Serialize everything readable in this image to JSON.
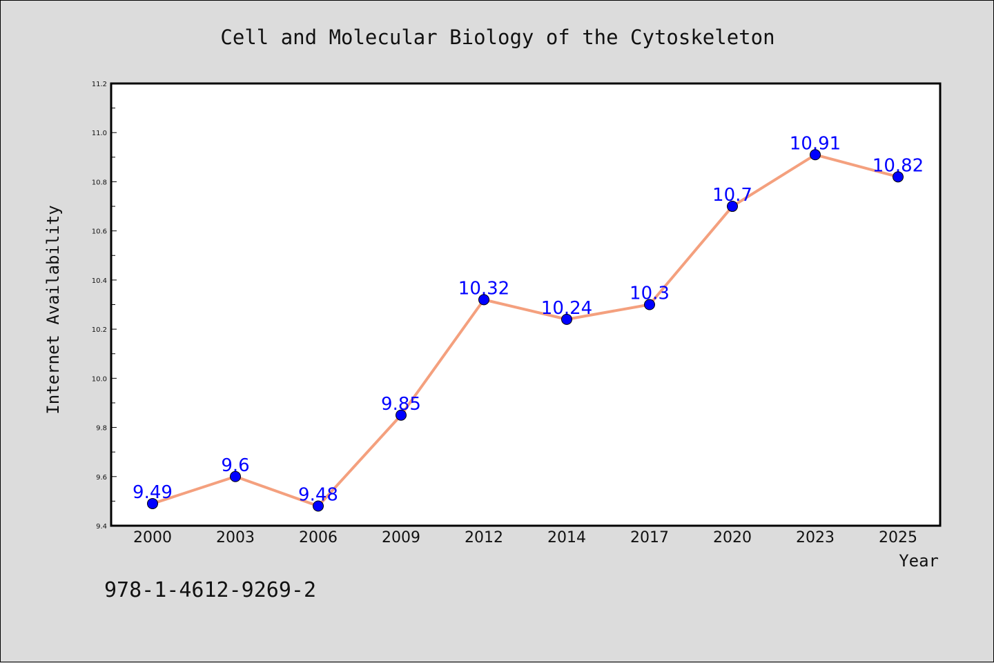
{
  "chart_data": {
    "type": "line",
    "title": "Cell and Molecular Biology of the Cytoskeleton",
    "xlabel": "Year",
    "ylabel": "Internet Availability",
    "categories": [
      "2000",
      "2003",
      "2006",
      "2009",
      "2012",
      "2014",
      "2017",
      "2020",
      "2023",
      "2025"
    ],
    "series": [
      {
        "values": [
          9.49,
          9.6,
          9.48,
          9.85,
          10.32,
          10.24,
          10.3,
          10.7,
          10.91,
          10.82
        ],
        "data_labels": [
          "9.49",
          "9.6",
          "9.48",
          "9.85",
          "10.32",
          "10.24",
          "10.3",
          "10.7",
          "10.91",
          "10.82"
        ],
        "line_color": "#f4a07e",
        "marker_color": "#0000ff"
      }
    ],
    "ylim": [
      9.4,
      11.2
    ],
    "yticks": [
      "9.4",
      "9.6",
      "9.8",
      "10.0",
      "10.2",
      "10.4",
      "10.6",
      "10.8",
      "11.0",
      "11.2"
    ],
    "grid": false,
    "legend": "none"
  },
  "footnote": "978-1-4612-9269-2",
  "colors": {
    "background": "#dcdcdc",
    "plot_background": "#ffffff",
    "line": "#f4a07e",
    "marker": "#0000ff",
    "label": "#0000ff"
  }
}
